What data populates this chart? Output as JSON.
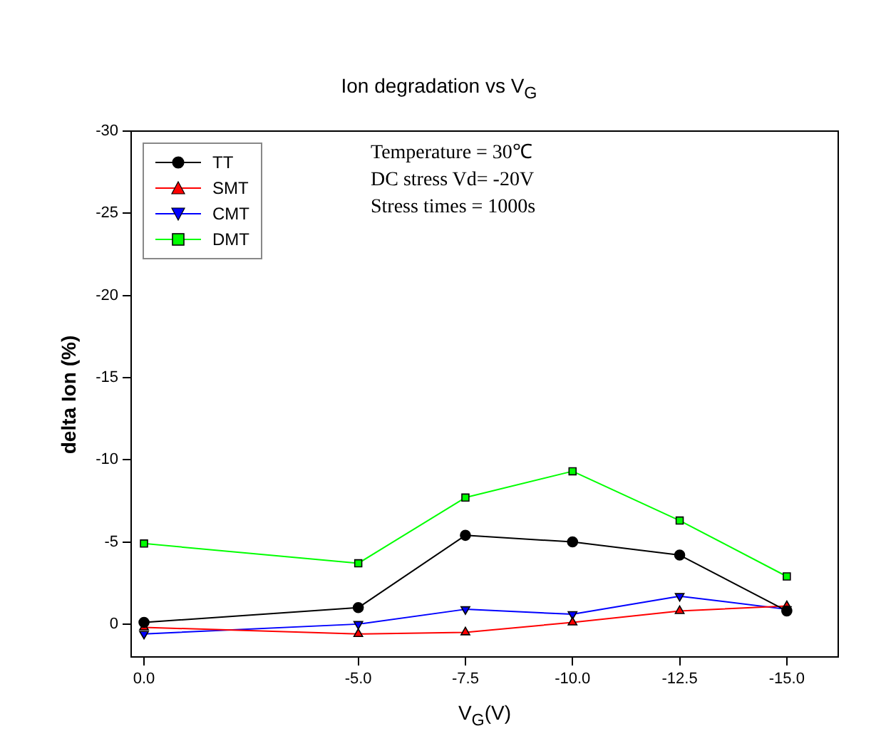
{
  "chart_data": {
    "type": "line",
    "title": "Ion degradation vs V$_{G}$",
    "xlabel": "V$_{G}$(V)",
    "ylabel": "delta Ion (%)",
    "annotations": [
      "Temperature = 30℃",
      "DC stress Vd= -20V",
      "Stress times = 1000s"
    ],
    "x": [
      0,
      -5,
      -7.5,
      -10,
      -12.5,
      -15
    ],
    "series": [
      {
        "name": "TT",
        "color": "#000000",
        "marker": "circle",
        "values": [
          -0.1,
          -1.0,
          -5.4,
          -5.0,
          -4.2,
          -0.8
        ]
      },
      {
        "name": "SMT",
        "color": "#ff0000",
        "marker": "triangle",
        "values": [
          0.2,
          0.6,
          0.5,
          -0.1,
          -0.8,
          -1.1
        ]
      },
      {
        "name": "CMT",
        "color": "#0000ff",
        "marker": "triangle-down",
        "values": [
          0.6,
          0.0,
          -0.9,
          -0.6,
          -1.7,
          -0.9
        ]
      },
      {
        "name": "DMT",
        "color": "#00ff00",
        "marker": "square",
        "values": [
          -4.9,
          -3.7,
          -7.7,
          -9.3,
          -6.3,
          -2.9
        ]
      }
    ],
    "xlim": [
      0.3,
      -16.2
    ],
    "xticks": [
      {
        "value": 0,
        "label": "0.0"
      },
      {
        "value": -5,
        "label": "-5.0"
      },
      {
        "value": -7.5,
        "label": "-7.5"
      },
      {
        "value": -10,
        "label": "-10.0"
      },
      {
        "value": -12.5,
        "label": "-12.5"
      },
      {
        "value": -15,
        "label": "-15.0"
      }
    ],
    "ylim": [
      2,
      -30
    ],
    "yticks": [
      0,
      -5,
      -10,
      -15,
      -20,
      -25,
      -30
    ],
    "legend": "top left",
    "grid": false,
    "line_style": "solid"
  }
}
